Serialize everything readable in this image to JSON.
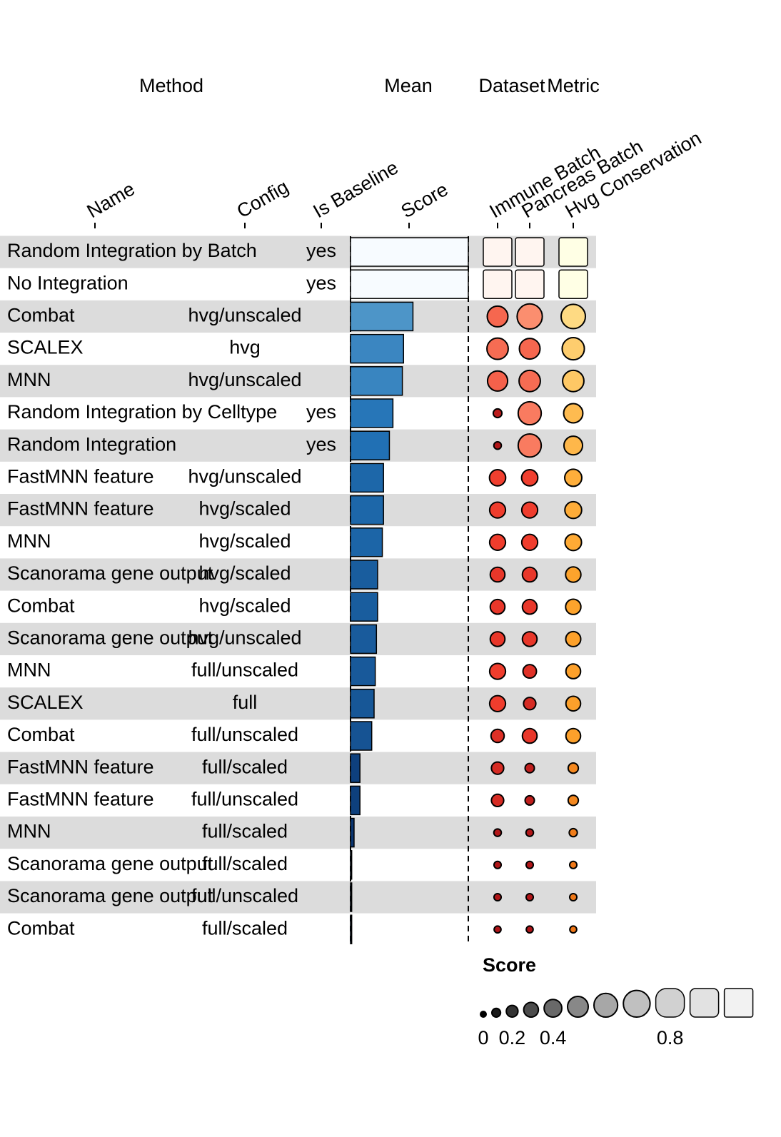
{
  "chart_data": {
    "type": "funkyheatmap",
    "column_groups": [
      "Method",
      "Mean",
      "Dataset",
      "Metric"
    ],
    "columns": [
      {
        "label": "Name",
        "geom": "text"
      },
      {
        "label": "Config",
        "geom": "text"
      },
      {
        "label": "Is Baseline",
        "geom": "text"
      },
      {
        "label": "Score",
        "geom": "bar",
        "palette": [
          "#08306b",
          "#2171b5",
          "#6baed6",
          "#f7fbff"
        ]
      },
      {
        "label": "Immune Batch",
        "geom": "circle",
        "palette": [
          "#a50f15",
          "#ef3b2c",
          "#fc9272",
          "#fff5f0"
        ]
      },
      {
        "label": "Pancreas Batch",
        "geom": "circle",
        "palette": [
          "#a50f15",
          "#ef3b2c",
          "#fc9272",
          "#fff5f0"
        ]
      },
      {
        "label": "Hvg Conservation",
        "geom": "circle",
        "palette": [
          "#ec7014",
          "#fea52d",
          "#fee391",
          "#ffffe5"
        ]
      }
    ],
    "rows": [
      [
        "Random Integration by Batch",
        null,
        "yes",
        1,
        1,
        1,
        1
      ],
      [
        "No Integration",
        null,
        "yes",
        1,
        1,
        1,
        1
      ],
      [
        "Combat",
        "hvg/unscaled",
        null,
        0.53,
        0.5,
        0.65,
        0.62
      ],
      [
        "SCALEX",
        "hvg",
        null,
        0.45,
        0.52,
        0.5,
        0.55
      ],
      [
        "MNN",
        "hvg/unscaled",
        null,
        0.44,
        0.48,
        0.52,
        0.52
      ],
      [
        "Random Integration by Celltype",
        null,
        "yes",
        0.36,
        0.1,
        0.58,
        0.45
      ],
      [
        "Random Integration",
        null,
        "yes",
        0.33,
        0.06,
        0.58,
        0.43
      ],
      [
        "FastMNN feature",
        "hvg/unscaled",
        null,
        0.28,
        0.35,
        0.35,
        0.38
      ],
      [
        "FastMNN feature",
        "hvg/scaled",
        null,
        0.28,
        0.34,
        0.34,
        0.37
      ],
      [
        "MNN",
        "hvg/scaled",
        null,
        0.27,
        0.34,
        0.34,
        0.36
      ],
      [
        "Scanorama gene output",
        "hvg/scaled",
        null,
        0.23,
        0.3,
        0.3,
        0.32
      ],
      [
        "Combat",
        "hvg/scaled",
        null,
        0.23,
        0.3,
        0.3,
        0.32
      ],
      [
        "Scanorama gene output",
        "hvg/unscaled",
        null,
        0.22,
        0.3,
        0.3,
        0.31
      ],
      [
        "MNN",
        "full/unscaled",
        null,
        0.21,
        0.34,
        0.26,
        0.3
      ],
      [
        "SCALEX",
        "full",
        null,
        0.2,
        0.34,
        0.22,
        0.3
      ],
      [
        "Combat",
        "full/unscaled",
        null,
        0.18,
        0.25,
        0.3,
        0.3
      ],
      [
        "FastMNN feature",
        "full/scaled",
        null,
        0.08,
        0.22,
        0.12,
        0.15
      ],
      [
        "FastMNN feature",
        "full/unscaled",
        null,
        0.08,
        0.22,
        0.12,
        0.15
      ],
      [
        "MNN",
        "full/scaled",
        null,
        0.03,
        0.06,
        0.06,
        0.08
      ],
      [
        "Scanorama gene output",
        "full/scaled",
        null,
        0.01,
        0.05,
        0.05,
        0.05
      ],
      [
        "Scanorama gene output",
        "full/unscaled",
        null,
        0.01,
        0.05,
        0.05,
        0.05
      ],
      [
        "Combat",
        "full/scaled",
        null,
        0.01,
        0.04,
        0.04,
        0.04
      ]
    ],
    "legend": {
      "title": "Score",
      "values": [
        0,
        0.1,
        0.2,
        0.3,
        0.4,
        0.5,
        0.6,
        0.7,
        0.8,
        0.9,
        1
      ],
      "ticks": [
        0,
        0.2,
        0.4,
        0.8
      ],
      "palette": [
        "#000000",
        "#555555",
        "#bbbbbb",
        "#f2f2f2"
      ]
    }
  }
}
